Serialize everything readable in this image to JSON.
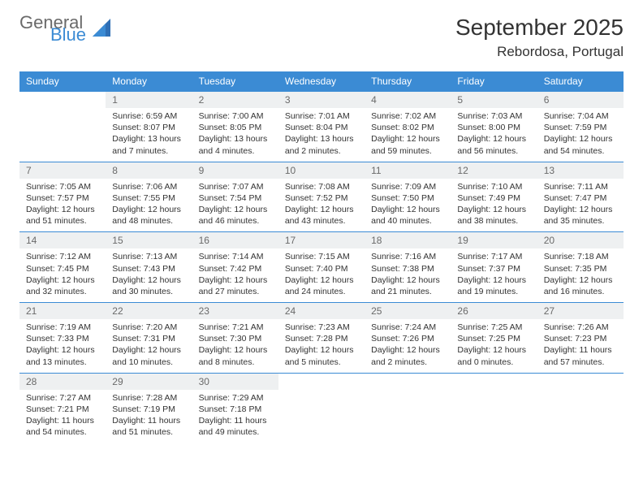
{
  "brand": {
    "word1": "General",
    "word2": "Blue"
  },
  "title": "September 2025",
  "location": "Rebordosa, Portugal",
  "colors": {
    "header_bg": "#3b8bd4",
    "header_text": "#ffffff",
    "daynum_bg": "#eef0f1",
    "daynum_text": "#6a6a6a",
    "rule": "#3b8bd4",
    "body_text": "#333333",
    "logo_gray": "#6a6a6a",
    "logo_blue": "#3b8bd4"
  },
  "day_headers": [
    "Sunday",
    "Monday",
    "Tuesday",
    "Wednesday",
    "Thursday",
    "Friday",
    "Saturday"
  ],
  "weeks": [
    [
      null,
      {
        "n": "1",
        "sunrise": "6:59 AM",
        "sunset": "8:07 PM",
        "daylight": "13 hours and 7 minutes."
      },
      {
        "n": "2",
        "sunrise": "7:00 AM",
        "sunset": "8:05 PM",
        "daylight": "13 hours and 4 minutes."
      },
      {
        "n": "3",
        "sunrise": "7:01 AM",
        "sunset": "8:04 PM",
        "daylight": "13 hours and 2 minutes."
      },
      {
        "n": "4",
        "sunrise": "7:02 AM",
        "sunset": "8:02 PM",
        "daylight": "12 hours and 59 minutes."
      },
      {
        "n": "5",
        "sunrise": "7:03 AM",
        "sunset": "8:00 PM",
        "daylight": "12 hours and 56 minutes."
      },
      {
        "n": "6",
        "sunrise": "7:04 AM",
        "sunset": "7:59 PM",
        "daylight": "12 hours and 54 minutes."
      }
    ],
    [
      {
        "n": "7",
        "sunrise": "7:05 AM",
        "sunset": "7:57 PM",
        "daylight": "12 hours and 51 minutes."
      },
      {
        "n": "8",
        "sunrise": "7:06 AM",
        "sunset": "7:55 PM",
        "daylight": "12 hours and 48 minutes."
      },
      {
        "n": "9",
        "sunrise": "7:07 AM",
        "sunset": "7:54 PM",
        "daylight": "12 hours and 46 minutes."
      },
      {
        "n": "10",
        "sunrise": "7:08 AM",
        "sunset": "7:52 PM",
        "daylight": "12 hours and 43 minutes."
      },
      {
        "n": "11",
        "sunrise": "7:09 AM",
        "sunset": "7:50 PM",
        "daylight": "12 hours and 40 minutes."
      },
      {
        "n": "12",
        "sunrise": "7:10 AM",
        "sunset": "7:49 PM",
        "daylight": "12 hours and 38 minutes."
      },
      {
        "n": "13",
        "sunrise": "7:11 AM",
        "sunset": "7:47 PM",
        "daylight": "12 hours and 35 minutes."
      }
    ],
    [
      {
        "n": "14",
        "sunrise": "7:12 AM",
        "sunset": "7:45 PM",
        "daylight": "12 hours and 32 minutes."
      },
      {
        "n": "15",
        "sunrise": "7:13 AM",
        "sunset": "7:43 PM",
        "daylight": "12 hours and 30 minutes."
      },
      {
        "n": "16",
        "sunrise": "7:14 AM",
        "sunset": "7:42 PM",
        "daylight": "12 hours and 27 minutes."
      },
      {
        "n": "17",
        "sunrise": "7:15 AM",
        "sunset": "7:40 PM",
        "daylight": "12 hours and 24 minutes."
      },
      {
        "n": "18",
        "sunrise": "7:16 AM",
        "sunset": "7:38 PM",
        "daylight": "12 hours and 21 minutes."
      },
      {
        "n": "19",
        "sunrise": "7:17 AM",
        "sunset": "7:37 PM",
        "daylight": "12 hours and 19 minutes."
      },
      {
        "n": "20",
        "sunrise": "7:18 AM",
        "sunset": "7:35 PM",
        "daylight": "12 hours and 16 minutes."
      }
    ],
    [
      {
        "n": "21",
        "sunrise": "7:19 AM",
        "sunset": "7:33 PM",
        "daylight": "12 hours and 13 minutes."
      },
      {
        "n": "22",
        "sunrise": "7:20 AM",
        "sunset": "7:31 PM",
        "daylight": "12 hours and 10 minutes."
      },
      {
        "n": "23",
        "sunrise": "7:21 AM",
        "sunset": "7:30 PM",
        "daylight": "12 hours and 8 minutes."
      },
      {
        "n": "24",
        "sunrise": "7:23 AM",
        "sunset": "7:28 PM",
        "daylight": "12 hours and 5 minutes."
      },
      {
        "n": "25",
        "sunrise": "7:24 AM",
        "sunset": "7:26 PM",
        "daylight": "12 hours and 2 minutes."
      },
      {
        "n": "26",
        "sunrise": "7:25 AM",
        "sunset": "7:25 PM",
        "daylight": "12 hours and 0 minutes."
      },
      {
        "n": "27",
        "sunrise": "7:26 AM",
        "sunset": "7:23 PM",
        "daylight": "11 hours and 57 minutes."
      }
    ],
    [
      {
        "n": "28",
        "sunrise": "7:27 AM",
        "sunset": "7:21 PM",
        "daylight": "11 hours and 54 minutes."
      },
      {
        "n": "29",
        "sunrise": "7:28 AM",
        "sunset": "7:19 PM",
        "daylight": "11 hours and 51 minutes."
      },
      {
        "n": "30",
        "sunrise": "7:29 AM",
        "sunset": "7:18 PM",
        "daylight": "11 hours and 49 minutes."
      },
      null,
      null,
      null,
      null
    ]
  ],
  "labels": {
    "sunrise": "Sunrise:",
    "sunset": "Sunset:",
    "daylight": "Daylight:"
  }
}
